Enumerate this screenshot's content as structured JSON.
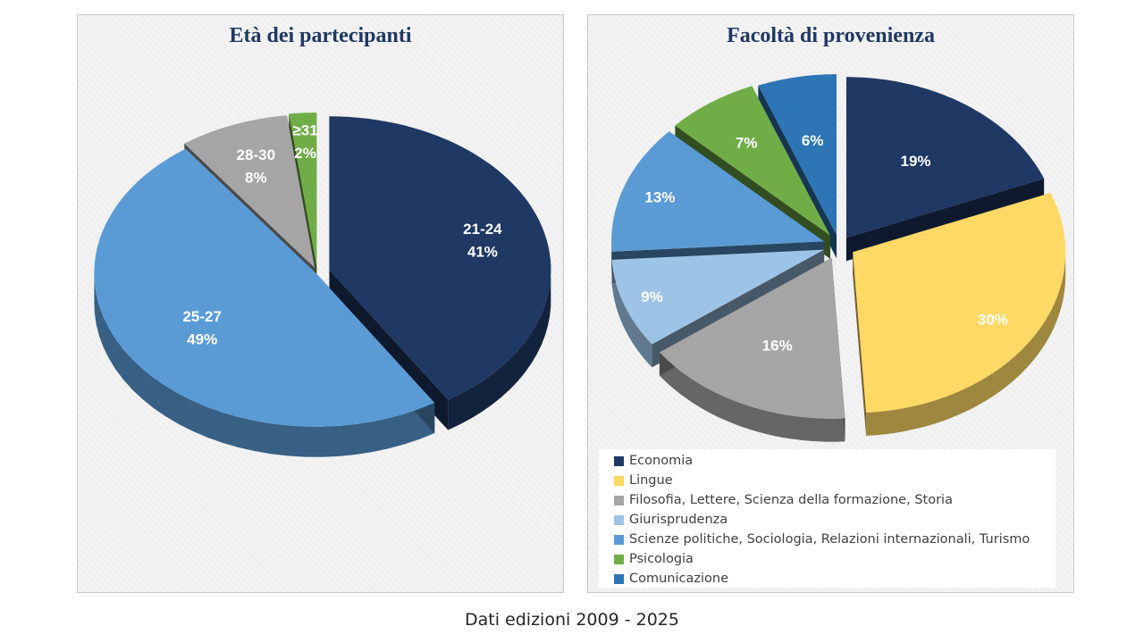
{
  "chart_data": [
    {
      "type": "pie",
      "title": "Età dei partecipanti",
      "categories": [
        "21-24",
        "25-27",
        "28-30",
        "≥31"
      ],
      "values": [
        41,
        49,
        8,
        2
      ],
      "labels": [
        {
          "category": "21-24",
          "value": "41%"
        },
        {
          "category": "25-27",
          "value": "49%"
        },
        {
          "category": "28-30",
          "value": "8%"
        },
        {
          "category": "≥31",
          "value": "2%"
        }
      ],
      "colors": [
        "#1f3864",
        "#5b9bd5",
        "#a5a5a5",
        "#70ad47"
      ],
      "style": "3d-exploded",
      "legend": "none"
    },
    {
      "type": "pie",
      "title": "Facoltà di provenienza",
      "categories": [
        "Economia",
        "Lingue",
        "Filosofia, Lettere, Scienza della formazione, Storia",
        "Giurisprudenza",
        "Scienze politiche, Sociologia, Relazioni internazionali, Turismo",
        "Psicologia",
        "Comunicazione"
      ],
      "values": [
        19,
        30,
        16,
        9,
        13,
        7,
        6
      ],
      "labels": [
        "19%",
        "30%",
        "16%",
        "9%",
        "13%",
        "7%",
        "6%"
      ],
      "colors": [
        "#1f3864",
        "#ffd966",
        "#a5a5a5",
        "#9dc3e6",
        "#5b9bd5",
        "#70ad47",
        "#2e75b6"
      ],
      "style": "3d-exploded",
      "legend": "bottom"
    }
  ],
  "footer": "Dati edizioni  2009 - 2025"
}
